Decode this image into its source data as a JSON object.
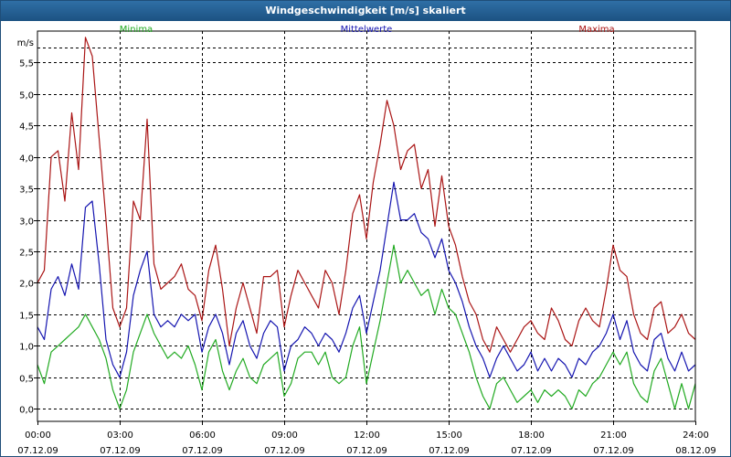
{
  "window": {
    "title": "Windgeschwindigkeit [m/s] skaliert"
  },
  "colors": {
    "min": "#22aa22",
    "mean": "#1515b0",
    "max": "#aa1515",
    "axis": "#000000"
  },
  "chart_data": {
    "type": "line",
    "title": "Windgeschwindigkeit [m/s] skaliert",
    "ylabel": "m/s",
    "ylim": [
      -0.2,
      6.0
    ],
    "xlim": [
      0,
      24
    ],
    "y_ticks": [
      0.0,
      0.5,
      1.0,
      1.5,
      2.0,
      2.5,
      3.0,
      3.5,
      4.0,
      4.5,
      5.0,
      5.5
    ],
    "y_tick_labels": [
      "0,0",
      "0,5",
      "1,0",
      "1,5",
      "2,0",
      "2,5",
      "3,0",
      "3,5",
      "4,0",
      "4,5",
      "5,0",
      "5,5"
    ],
    "x_ticks": [
      0,
      3,
      6,
      9,
      12,
      15,
      18,
      21,
      24
    ],
    "x_tick_labels": [
      {
        "time": "00:00",
        "date": "07.12.09"
      },
      {
        "time": "03:00",
        "date": "07.12.09"
      },
      {
        "time": "06:00",
        "date": "07.12.09"
      },
      {
        "time": "09:00",
        "date": "07.12.09"
      },
      {
        "time": "12:00",
        "date": "07.12.09"
      },
      {
        "time": "15:00",
        "date": "07.12.09"
      },
      {
        "time": "18:00",
        "date": "07.12.09"
      },
      {
        "time": "21:00",
        "date": "07.12.09"
      },
      {
        "time": "24:00",
        "date": "08.12.09"
      }
    ],
    "x": [
      0.0,
      0.25,
      0.5,
      0.75,
      1.0,
      1.25,
      1.5,
      1.75,
      2.0,
      2.25,
      2.5,
      2.75,
      3.0,
      3.25,
      3.5,
      3.75,
      4.0,
      4.25,
      4.5,
      4.75,
      5.0,
      5.25,
      5.5,
      5.75,
      6.0,
      6.25,
      6.5,
      6.75,
      7.0,
      7.25,
      7.5,
      7.75,
      8.0,
      8.25,
      8.5,
      8.75,
      9.0,
      9.25,
      9.5,
      9.75,
      10.0,
      10.25,
      10.5,
      10.75,
      11.0,
      11.25,
      11.5,
      11.75,
      12.0,
      12.25,
      12.5,
      12.75,
      13.0,
      13.25,
      13.5,
      13.75,
      14.0,
      14.25,
      14.5,
      14.75,
      15.0,
      15.25,
      15.5,
      15.75,
      16.0,
      16.25,
      16.5,
      16.75,
      17.0,
      17.25,
      17.5,
      17.75,
      18.0,
      18.25,
      18.5,
      18.75,
      19.0,
      19.25,
      19.5,
      19.75,
      20.0,
      20.25,
      20.5,
      20.75,
      21.0,
      21.25,
      21.5,
      21.75,
      22.0,
      22.25,
      22.5,
      22.75,
      23.0,
      23.25,
      23.5,
      23.75,
      24.0
    ],
    "series": [
      {
        "name": "Minima",
        "color": "#22aa22",
        "values": [
          0.7,
          0.4,
          0.9,
          1.0,
          1.1,
          1.2,
          1.3,
          1.5,
          1.3,
          1.1,
          0.8,
          0.3,
          0.0,
          0.3,
          0.9,
          1.2,
          1.5,
          1.2,
          1.0,
          0.8,
          0.9,
          0.8,
          1.0,
          0.7,
          0.3,
          0.9,
          1.1,
          0.6,
          0.3,
          0.6,
          0.8,
          0.5,
          0.4,
          0.7,
          0.8,
          0.9,
          0.2,
          0.4,
          0.8,
          0.9,
          0.9,
          0.7,
          0.9,
          0.5,
          0.4,
          0.5,
          1.0,
          1.3,
          0.4,
          0.9,
          1.4,
          2.0,
          2.6,
          2.0,
          2.2,
          2.0,
          1.8,
          1.9,
          1.5,
          1.9,
          1.6,
          1.5,
          1.2,
          0.9,
          0.5,
          0.2,
          0.0,
          0.4,
          0.5,
          0.3,
          0.1,
          0.2,
          0.3,
          0.1,
          0.3,
          0.2,
          0.3,
          0.2,
          0.0,
          0.3,
          0.2,
          0.4,
          0.5,
          0.7,
          0.9,
          0.7,
          0.9,
          0.4,
          0.2,
          0.1,
          0.6,
          0.8,
          0.4,
          0.0,
          0.4,
          0.0,
          0.4
        ]
      },
      {
        "name": "Mittelwerte",
        "color": "#1515b0",
        "values": [
          1.3,
          1.1,
          1.9,
          2.1,
          1.8,
          2.3,
          1.9,
          3.2,
          3.3,
          2.3,
          1.1,
          0.7,
          0.5,
          0.9,
          1.8,
          2.2,
          2.5,
          1.5,
          1.3,
          1.4,
          1.3,
          1.5,
          1.4,
          1.5,
          0.9,
          1.3,
          1.5,
          1.2,
          0.7,
          1.2,
          1.4,
          1.0,
          0.8,
          1.2,
          1.4,
          1.3,
          0.6,
          1.0,
          1.1,
          1.3,
          1.2,
          1.0,
          1.2,
          1.1,
          0.9,
          1.2,
          1.6,
          1.8,
          1.2,
          1.7,
          2.2,
          2.9,
          3.6,
          3.0,
          3.0,
          3.1,
          2.8,
          2.7,
          2.4,
          2.7,
          2.2,
          2.0,
          1.7,
          1.3,
          1.0,
          0.8,
          0.5,
          0.8,
          1.0,
          0.8,
          0.6,
          0.7,
          0.9,
          0.6,
          0.8,
          0.6,
          0.8,
          0.7,
          0.5,
          0.8,
          0.7,
          0.9,
          1.0,
          1.2,
          1.5,
          1.1,
          1.4,
          0.9,
          0.7,
          0.6,
          1.1,
          1.2,
          0.8,
          0.6,
          0.9,
          0.6,
          0.7
        ]
      },
      {
        "name": "Maxima",
        "color": "#aa1515",
        "values": [
          2.0,
          2.2,
          4.0,
          4.1,
          3.3,
          4.7,
          3.8,
          5.9,
          5.6,
          4.3,
          3.0,
          1.6,
          1.3,
          1.6,
          3.3,
          3.0,
          4.6,
          2.3,
          1.9,
          2.0,
          2.1,
          2.3,
          1.9,
          1.8,
          1.4,
          2.2,
          2.6,
          1.9,
          1.0,
          1.6,
          2.0,
          1.6,
          1.2,
          2.1,
          2.1,
          2.2,
          1.3,
          1.8,
          2.2,
          2.0,
          1.8,
          1.6,
          2.2,
          2.0,
          1.5,
          2.2,
          3.1,
          3.4,
          2.7,
          3.6,
          4.2,
          4.9,
          4.5,
          3.8,
          4.1,
          4.2,
          3.5,
          3.8,
          2.9,
          3.7,
          2.9,
          2.6,
          2.1,
          1.7,
          1.5,
          1.1,
          0.9,
          1.3,
          1.1,
          0.9,
          1.1,
          1.3,
          1.4,
          1.2,
          1.1,
          1.6,
          1.4,
          1.1,
          1.0,
          1.4,
          1.6,
          1.4,
          1.3,
          1.9,
          2.6,
          2.2,
          2.1,
          1.5,
          1.2,
          1.1,
          1.6,
          1.7,
          1.2,
          1.3,
          1.5,
          1.2,
          1.1
        ]
      }
    ],
    "legend_position": "top",
    "grid": true
  }
}
